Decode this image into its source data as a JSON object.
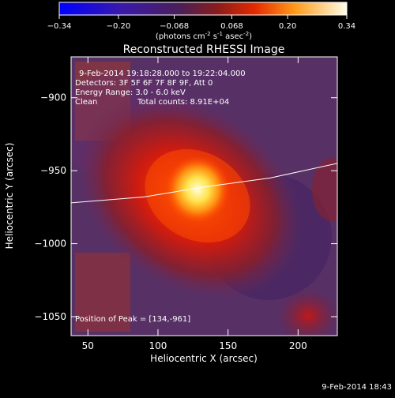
{
  "colorbar": {
    "ticks": [
      "-0.34",
      "-0.20",
      "-0.068",
      "0.068",
      "0.20",
      "0.34"
    ],
    "units_text": "(photons cm",
    "units_sup1": "-2",
    "units_mid1": " s",
    "units_sup2": "-1",
    "units_mid2": " asec",
    "units_sup3": "-2",
    "units_close": ")"
  },
  "info": {
    "time_range": "9-Feb-2014 19:18:28.000 to 19:22:04.000",
    "detectors": "Detectors: 3F 5F 6F 7F 8F 9F, Att 0",
    "energy": "Energy Range: 3.0 - 6.0 keV",
    "clean": "Clean",
    "total_counts": "Total counts: 8.91E+04",
    "peak": "Position of Peak = [134,-961]"
  },
  "footer_timestamp": "9-Feb-2014 18:43",
  "chart_data": {
    "type": "heatmap",
    "title": "Reconstructed RHESSI Image",
    "xlabel": "Heliocentric X (arcsec)",
    "ylabel": "Heliocentric Y (arcsec)",
    "xlim": [
      38,
      228
    ],
    "ylim": [
      -1063,
      -872
    ],
    "xticks": [
      50,
      100,
      150,
      200
    ],
    "yticks": [
      -1050,
      -1000,
      -950,
      -900
    ],
    "colorbar_range": [
      -0.34,
      0.34
    ],
    "peak": {
      "x": 134,
      "y": -961
    },
    "limb_curve": [
      [
        38,
        -972
      ],
      [
        90,
        -968
      ],
      [
        134,
        -961
      ],
      [
        180,
        -955
      ],
      [
        228,
        -945
      ]
    ]
  }
}
